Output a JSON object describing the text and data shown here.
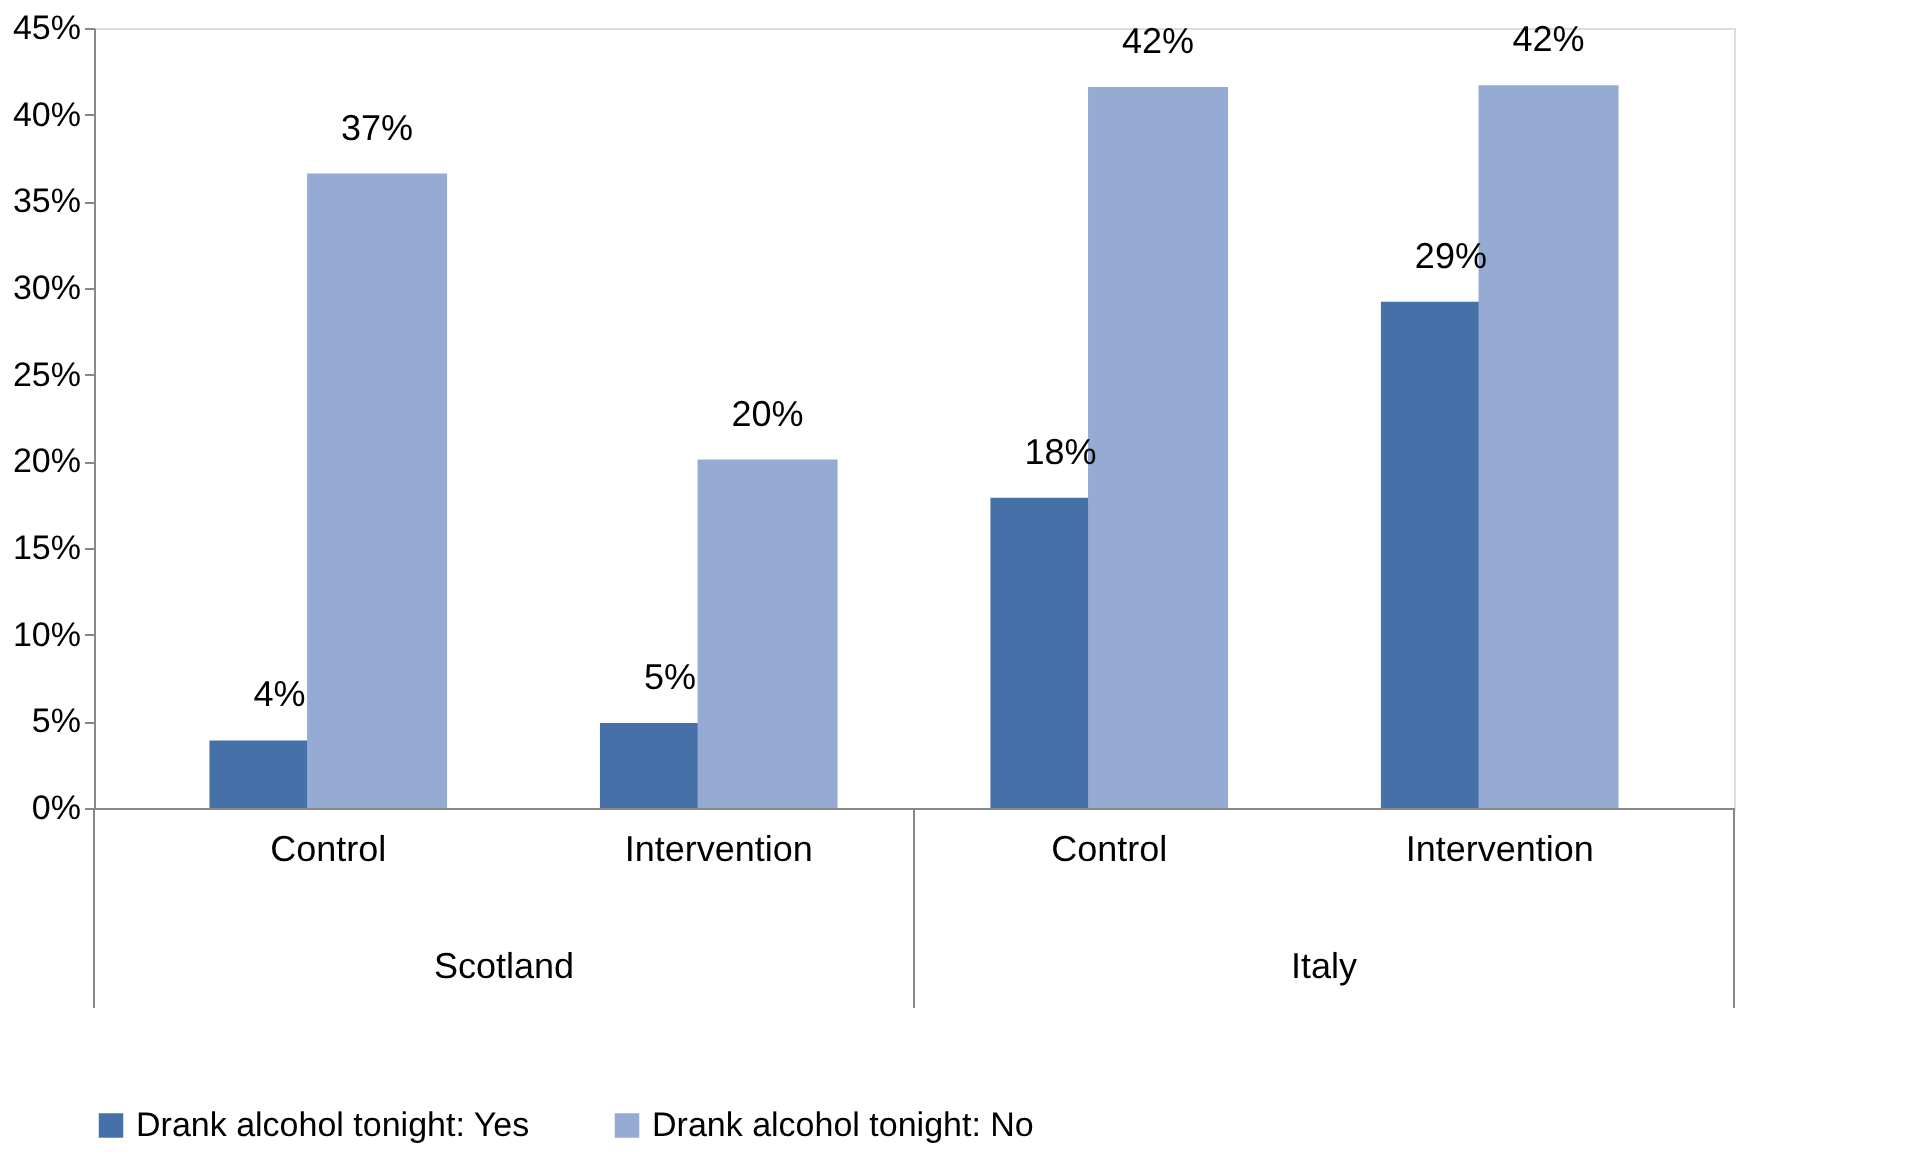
{
  "chart_data": {
    "type": "bar",
    "categories": [
      "Control",
      "Intervention",
      "Control",
      "Intervention"
    ],
    "series": [
      {
        "name": "Drank alcohol tonight: Yes",
        "color": "#4671a8",
        "values": [
          3.9,
          4.9,
          17.9,
          29.2
        ],
        "value_labels": [
          "4%",
          "5%",
          "18%",
          "29%"
        ]
      },
      {
        "name": "Drank alcohol tonight: No",
        "color": "#95abd3",
        "values": [
          36.6,
          20.1,
          41.6,
          41.7
        ],
        "value_labels": [
          "37%",
          "20%",
          "42%",
          "42%"
        ]
      }
    ],
    "annotations": [
      "Scotland",
      "Italy"
    ],
    "ylim": [
      0,
      45
    ],
    "yticks": [
      {
        "value": 0,
        "label": "0%"
      },
      {
        "value": 5,
        "label": "5%"
      },
      {
        "value": 10,
        "label": "10%"
      },
      {
        "value": 15,
        "label": "15%"
      },
      {
        "value": 20,
        "label": "20%"
      },
      {
        "value": 25,
        "label": "25%"
      },
      {
        "value": 30,
        "label": "30%"
      },
      {
        "value": 35,
        "label": "35%"
      },
      {
        "value": 40,
        "label": "40%"
      },
      {
        "value": 45,
        "label": "45%"
      }
    ],
    "grid": false,
    "legend": "bottom"
  }
}
